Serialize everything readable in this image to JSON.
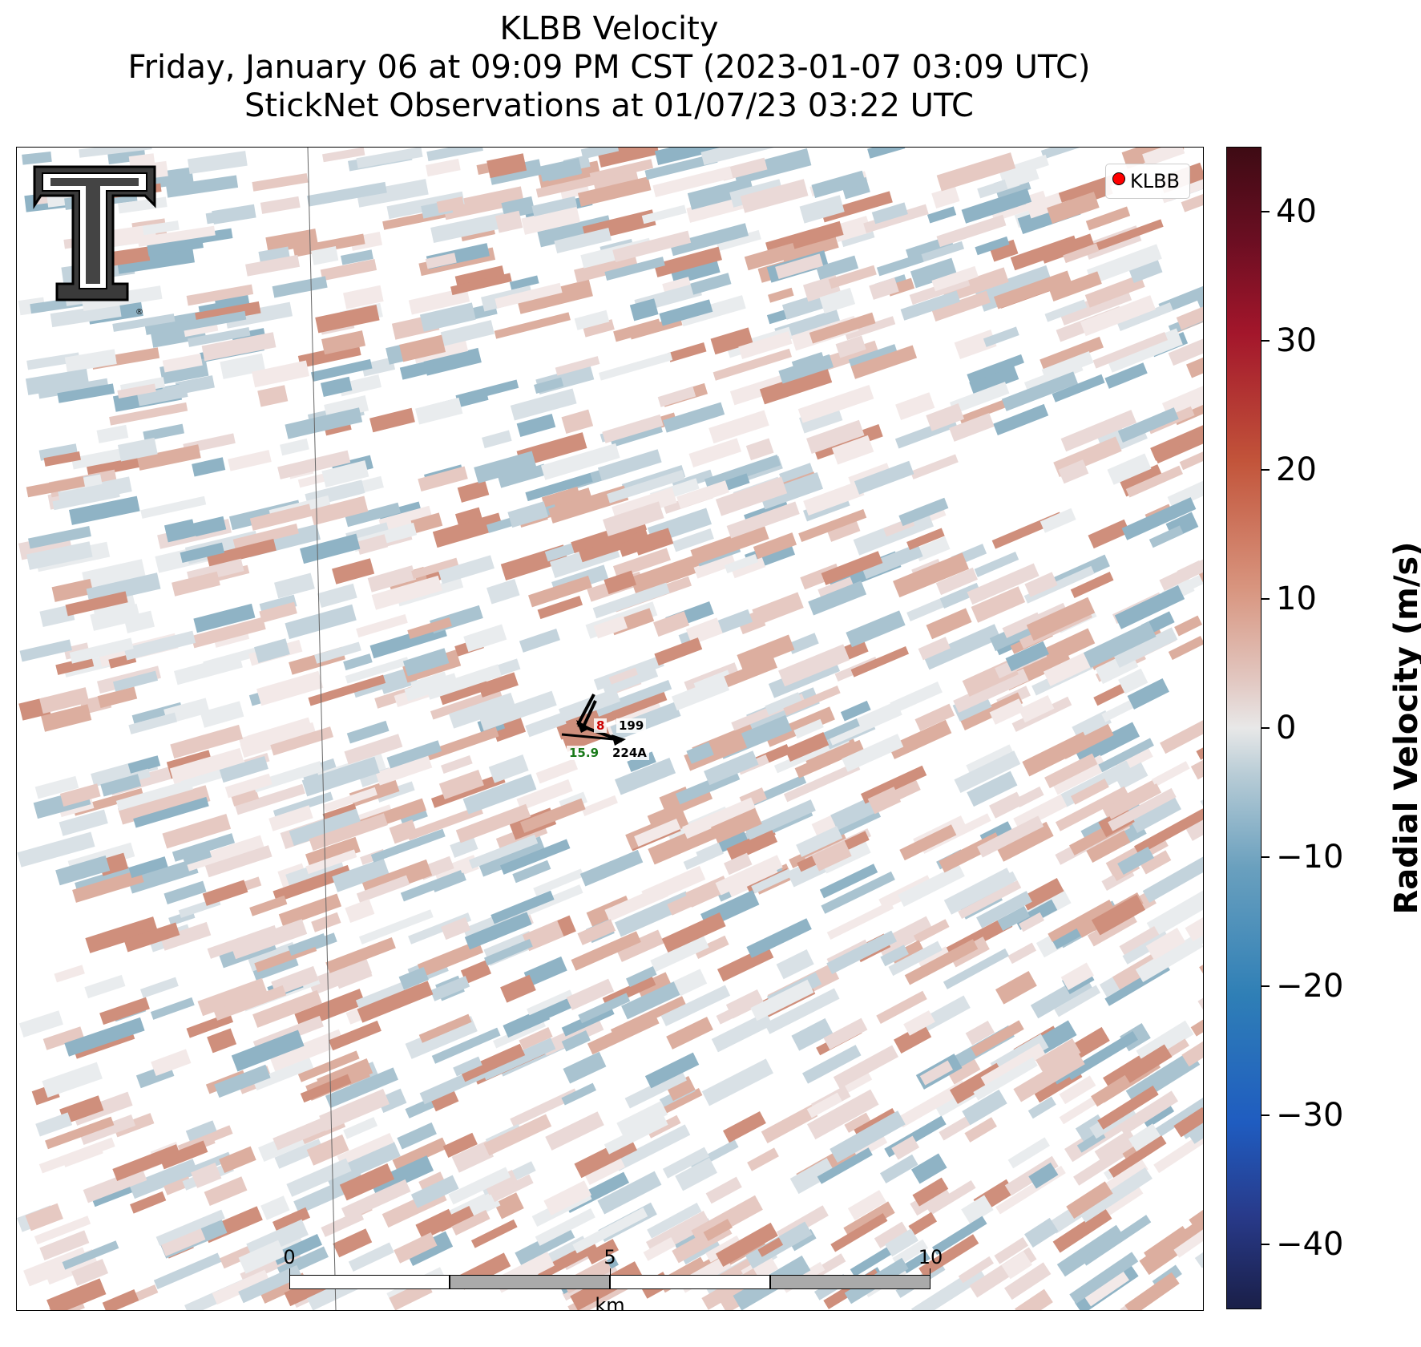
{
  "title": {
    "line1": "KLBB Velocity",
    "line2": "Friday, January 06 at 09:09 PM CST (2023-01-07 03:09 UTC)",
    "line3": "StickNet Observations at 01/07/23 03:22 UTC"
  },
  "legend": {
    "label": "KLBB",
    "marker_color": "#ff0000"
  },
  "logo": {
    "icon": "texas-tech-double-t-logo"
  },
  "stations": [
    {
      "id": "199",
      "value": "8",
      "value_color": "#cc0000"
    },
    {
      "id": "224A",
      "value": "15.9",
      "value_color": "#1a7a1a"
    }
  ],
  "scalebar": {
    "ticks": [
      "0",
      "5",
      "10"
    ],
    "unit": "km"
  },
  "colorbar": {
    "label": "Radial Velocity (m/s)",
    "min": -45,
    "max": 45,
    "ticks": [
      "40",
      "30",
      "20",
      "10",
      "0",
      "−10",
      "−20",
      "−30",
      "−40"
    ],
    "tick_values": [
      40,
      30,
      20,
      10,
      0,
      -10,
      -20,
      -30,
      -40
    ],
    "colormap": "blue-white-red diverging"
  }
}
